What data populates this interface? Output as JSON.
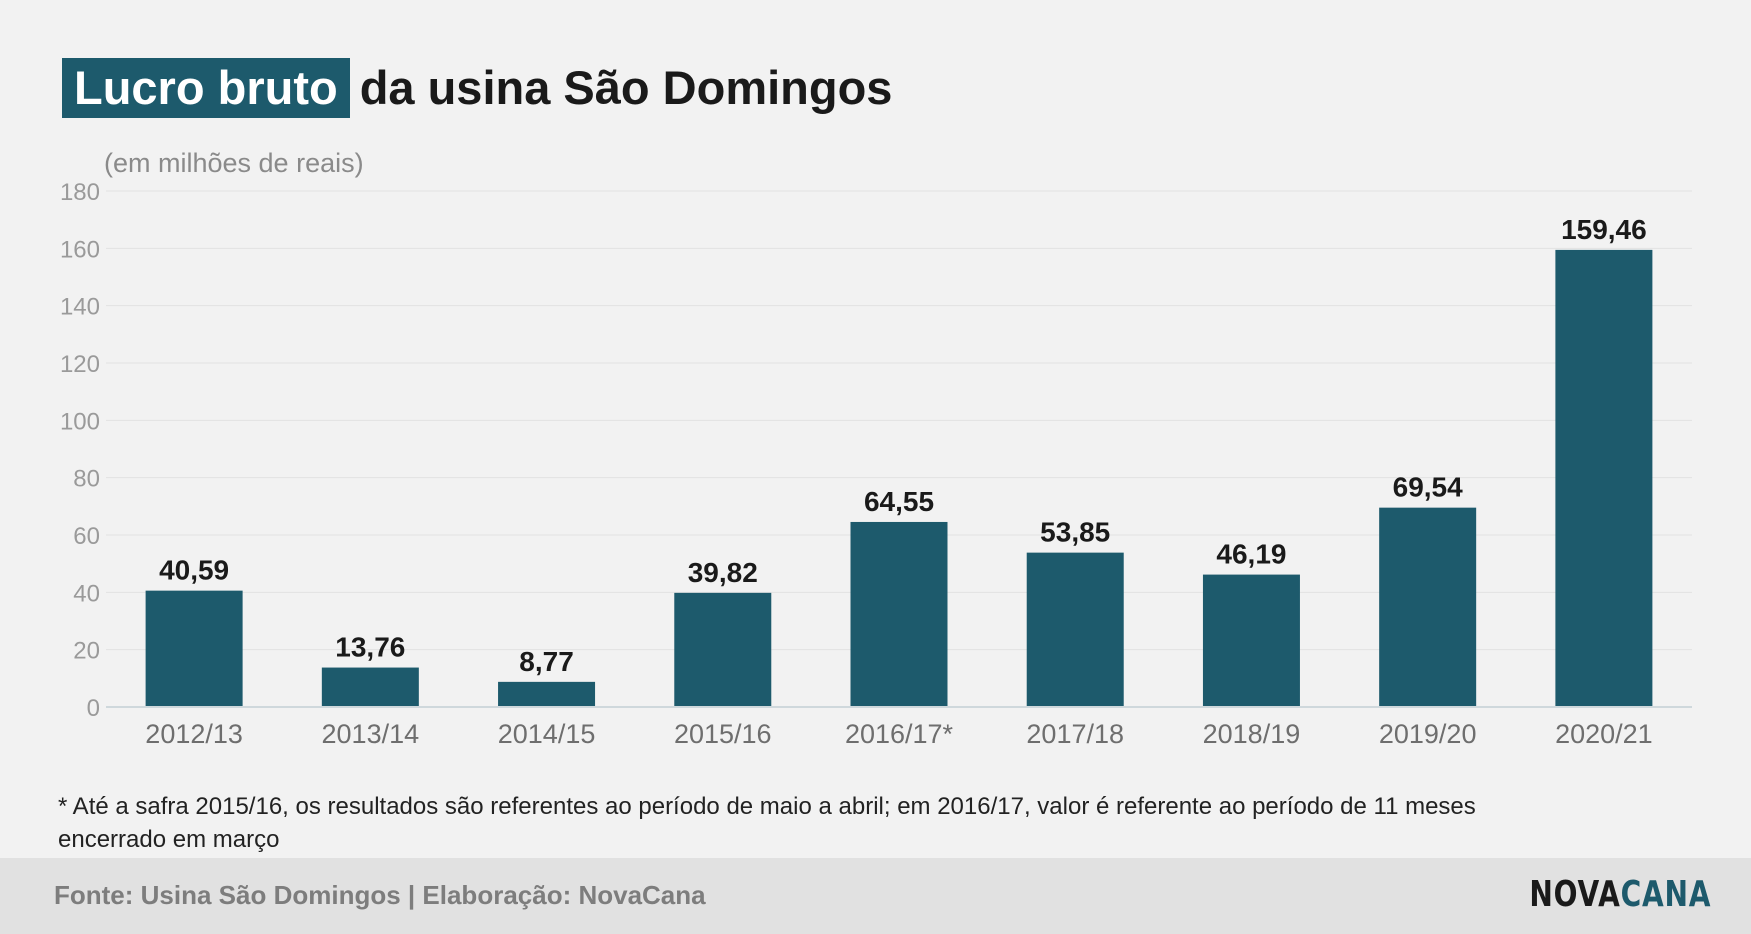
{
  "title": {
    "highlight": "Lucro bruto",
    "rest": "da usina São Domingos"
  },
  "subtitle": "(em milhões de reais)",
  "footnote": "* Até a safra 2015/16, os resultados são referentes ao período de maio a abril; em 2016/17, valor é referente ao período de 11 meses encerrado em março",
  "footer": {
    "source": "Fonte: Usina São Domingos | Elaboração: NovaCana",
    "logo_part1": "NOVA",
    "logo_part2": "CANA"
  },
  "colors": {
    "bar": "#1d5a6c",
    "highlight": "#1d5a6c",
    "background": "#f2f2f2",
    "footer_bg": "#e1e1e1"
  },
  "chart_data": {
    "type": "bar",
    "categories": [
      "2012/13",
      "2013/14",
      "2014/15",
      "2015/16",
      "2016/17*",
      "2017/18",
      "2018/19",
      "2019/20",
      "2020/21"
    ],
    "values": [
      40.59,
      13.76,
      8.77,
      39.82,
      64.55,
      53.85,
      46.19,
      69.54,
      159.46
    ],
    "value_labels": [
      "40,59",
      "13,76",
      "8,77",
      "39,82",
      "64,55",
      "53,85",
      "46,19",
      "69,54",
      "159,46"
    ],
    "ylim": [
      0,
      180
    ],
    "yticks": [
      0,
      20,
      40,
      60,
      80,
      100,
      120,
      140,
      160,
      180
    ],
    "grid": true,
    "legend": "none"
  }
}
